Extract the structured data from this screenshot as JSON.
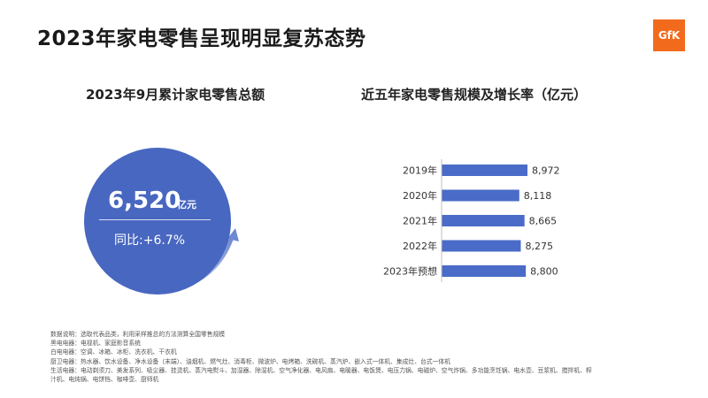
{
  "header": {
    "title": "2023年家电零售呈现明显复苏态势",
    "logo_text": "GfK"
  },
  "left_panel": {
    "subtitle": "2023年9月累计家电零售总额",
    "value": "6,520",
    "unit": "亿元",
    "yoy": "同比:+6.7%"
  },
  "right_panel": {
    "subtitle": "近五年家电零售规模及增长率（亿元）"
  },
  "chart_data": {
    "type": "bar",
    "orientation": "horizontal",
    "title": "近五年家电零售规模及增长率（亿元）",
    "categories": [
      "2019年",
      "2020年",
      "2021年",
      "2022年",
      "2023年预想"
    ],
    "values": [
      8972,
      8118,
      8665,
      8275,
      8800
    ],
    "value_labels": [
      "8,972",
      "8,118",
      "8,665",
      "8,275",
      "8,800"
    ],
    "xlim": [
      0,
      9500
    ],
    "color": "#4a6cc8"
  },
  "notes": [
    "数据说明：选取代表品类，利用采样推总的方法测算全国零售规模",
    "黑电电器：电视机、家庭影音系统",
    "白电电器：空调、冰箱、冰柜、洗衣机、干衣机",
    "厨卫电器：热水器、饮水设备、净水设备（末端）、油烟机、燃气灶、消毒柜、微波炉、电烤箱、洗碗机、蒸汽炉、嵌入式一体机、集成灶、台式一体机",
    "生活电器：电动剃须刀、美发系列、吸尘器、挂烫机、蒸汽电熨斗、加湿器、除湿机、空气净化器、电风扇、电暖器、电饭煲、电压力锅、电磁炉、空气炸锅、多功能烹饪锅、电水壶、豆浆机、搅拌机、榨",
    "汁机、电炖锅、电饼铛、咖啡壶、厨师机"
  ],
  "colors": {
    "circle": "#4867c0",
    "bar": "#4a6cc8",
    "logo": "#f26b1d"
  }
}
